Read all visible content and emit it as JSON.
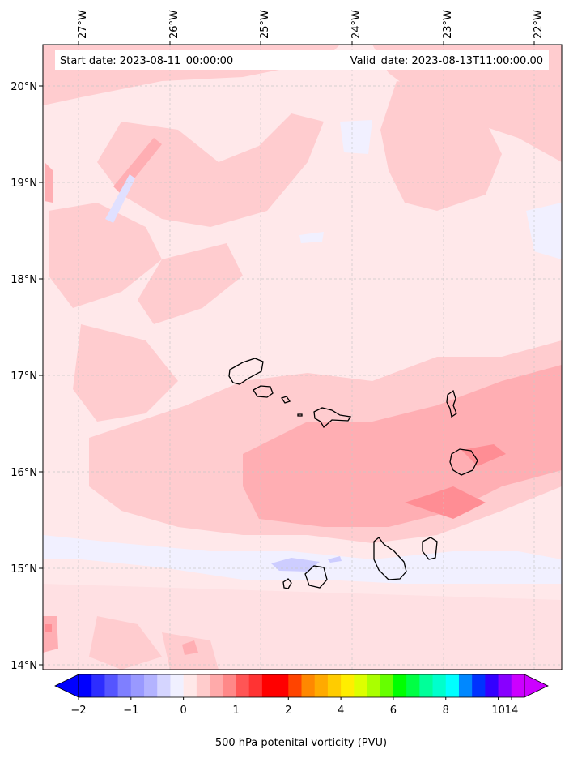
{
  "map": {
    "start_label": "Start date: 2023-08-11_00:00:00",
    "valid_label": "Valid_date: 2023-08-13T11:00:00.00",
    "lon_ticks": [
      "27°W",
      "26°W",
      "25°W",
      "24°W",
      "23°W",
      "22°W"
    ],
    "lat_ticks": [
      "20°N",
      "19°N",
      "18°N",
      "17°N",
      "16°N",
      "15°N",
      "14°N"
    ]
  },
  "colorbar": {
    "tick_labels": [
      "−2",
      "−1",
      "0",
      "1",
      "2",
      "4",
      "6",
      "8",
      "10",
      "14"
    ],
    "label": "500 hPa potenital vorticity (PVU)",
    "colors": [
      "#0000ff",
      "#2d2dff",
      "#5555ff",
      "#7f7fff",
      "#9999ff",
      "#b3b3ff",
      "#d5d5ff",
      "#f0f0ff",
      "#ffe8e8",
      "#ffcccc",
      "#ffaaaa",
      "#ff8888",
      "#ff5555",
      "#ff3333",
      "#ff0000",
      "#ff0000",
      "#ff4400",
      "#ff8800",
      "#ffaa00",
      "#ffcc00",
      "#ffee00",
      "#ddff00",
      "#aaff00",
      "#66ff00",
      "#00ff00",
      "#00ff44",
      "#00ff99",
      "#00ffcc",
      "#00ffff",
      "#0088ff",
      "#0033ff",
      "#3300ff",
      "#8800ff",
      "#cc00ff"
    ]
  }
}
